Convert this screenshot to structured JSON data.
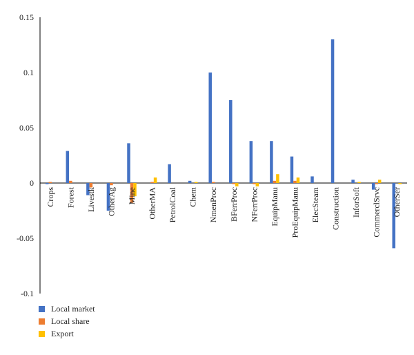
{
  "chart_data": {
    "type": "bar",
    "categories": [
      "Crops",
      "Forest",
      "Livestk",
      "OtherAg",
      "Mine",
      "OtherMA",
      "PetrolCoal",
      "Chem",
      "NmenProc",
      "BFerrProc",
      "NFerrProc",
      "EquipManu",
      "ProEquipManu",
      "ElecSteam",
      "Construction",
      "InforSoft",
      "CommerclSrvc",
      "OtherSer"
    ],
    "series": [
      {
        "name": "Local market",
        "color": "#4472C4",
        "values": [
          -0.001,
          0.029,
          -0.011,
          -0.025,
          0.036,
          0.0,
          0.017,
          0.002,
          0.1,
          0.075,
          0.038,
          0.038,
          0.024,
          0.006,
          0.13,
          0.003,
          -0.006,
          -0.059
        ]
      },
      {
        "name": "Local share",
        "color": "#ED7D31",
        "values": [
          0.001,
          0.002,
          -0.004,
          -0.002,
          -0.018,
          0.001,
          0.0,
          0.0,
          0.001,
          -0.001,
          -0.001,
          0.002,
          0.002,
          0.0,
          0.0,
          0.0,
          -0.001,
          0.0
        ]
      },
      {
        "name": "Export",
        "color": "#FFC000",
        "values": [
          0.0,
          0.0,
          0.0,
          0.0,
          -0.012,
          0.005,
          0.0,
          0.001,
          0.0,
          -0.003,
          -0.003,
          0.008,
          0.005,
          0.0,
          0.0,
          0.001,
          0.003,
          -0.001
        ]
      }
    ],
    "yticks": [
      "0.15",
      "0.1",
      "0.05",
      "0",
      "-0.05",
      "-0.1"
    ],
    "ylim": [
      -0.1,
      0.15
    ],
    "legend_position": "bottom-left",
    "grid": false
  }
}
